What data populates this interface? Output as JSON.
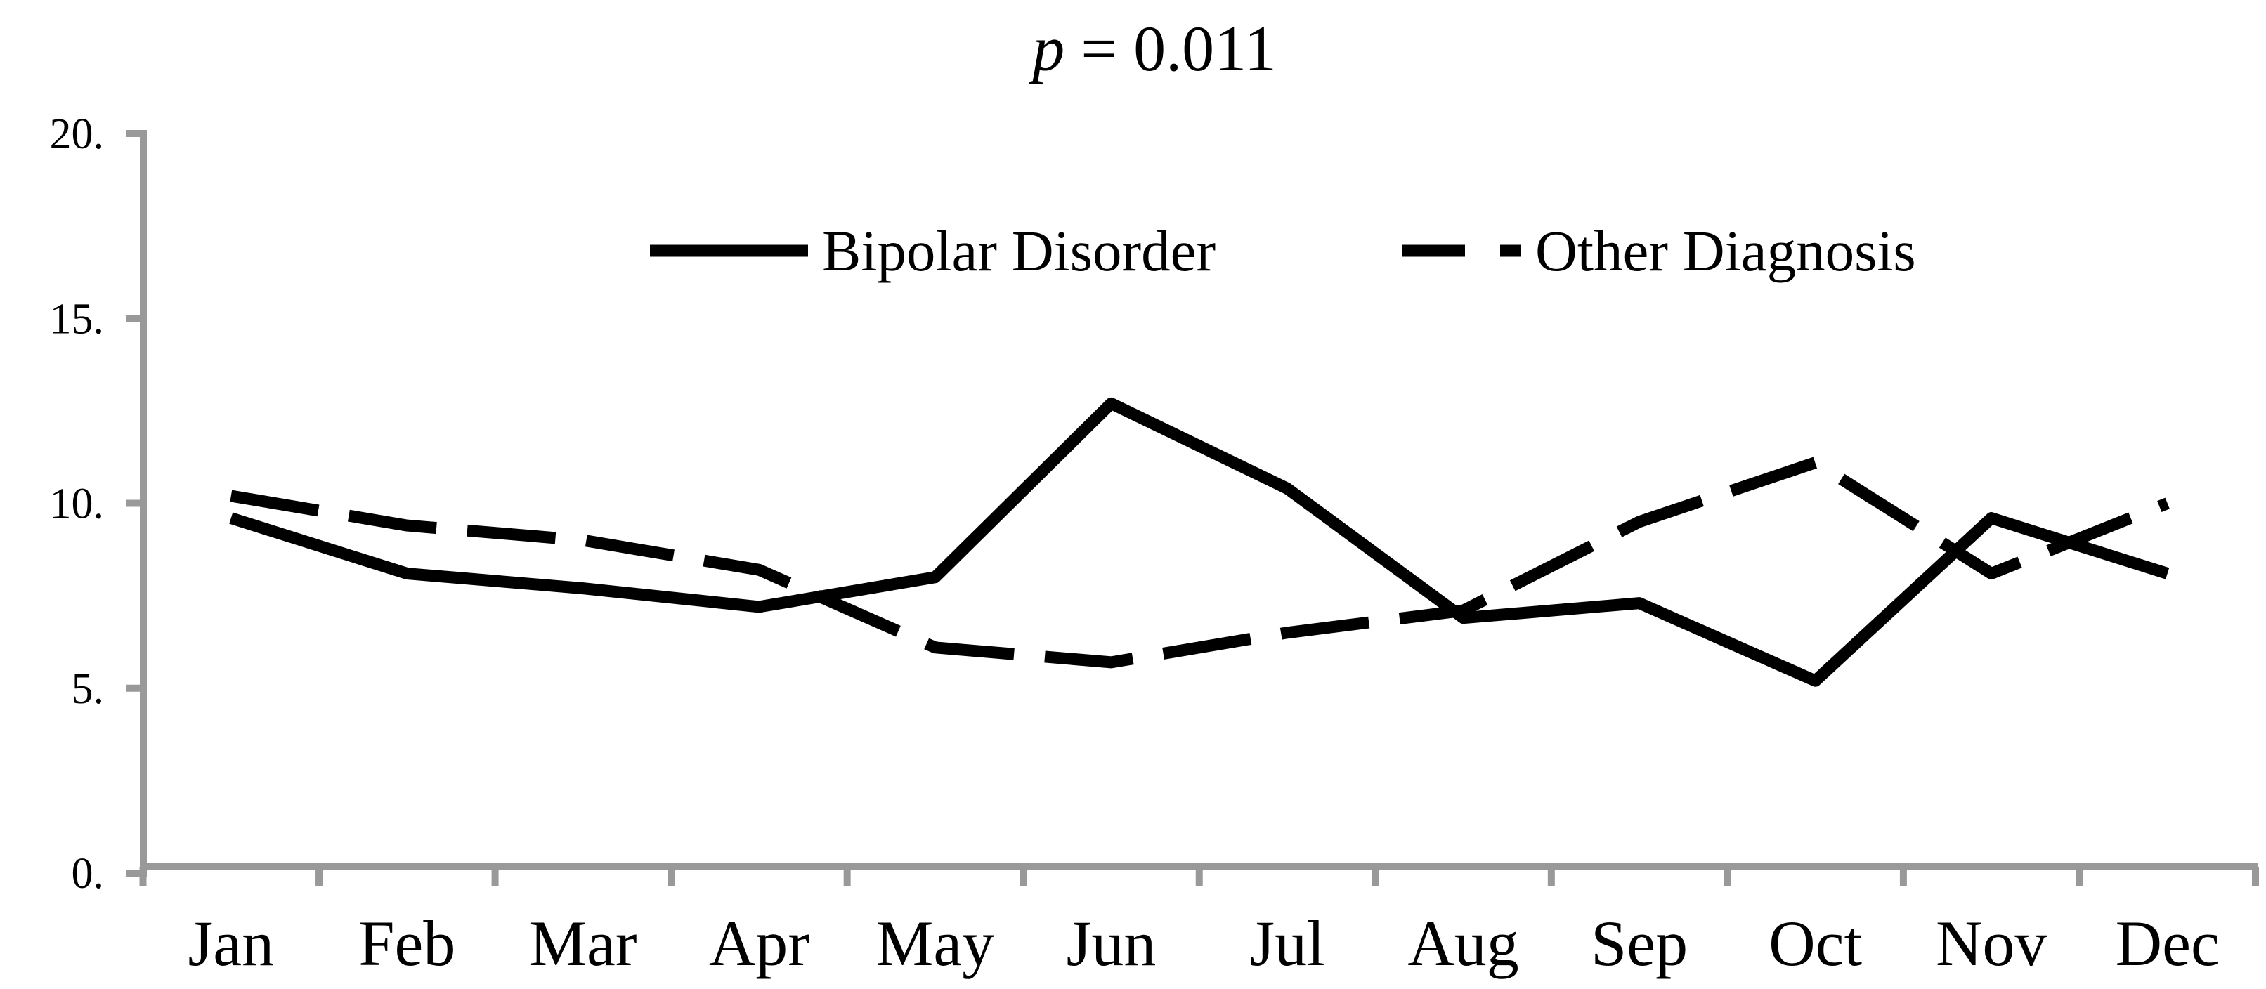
{
  "chart_data": {
    "type": "line",
    "title": "p = 0.011",
    "title_parts": {
      "p": "p",
      "rest": " = 0.011"
    },
    "categories": [
      "Jan",
      "Feb",
      "Mar",
      "Apr",
      "May",
      "Jun",
      "Jul",
      "Aug",
      "Sep",
      "Oct",
      "Nov",
      "Dec"
    ],
    "series": [
      {
        "name": "Bipolar Disorder",
        "line_style": "solid",
        "values": [
          9.6,
          8.1,
          7.7,
          7.2,
          8.0,
          12.7,
          10.4,
          6.9,
          7.3,
          5.2,
          9.6,
          8.1
        ]
      },
      {
        "name": "Other Diagnosis",
        "line_style": "dashed",
        "values": [
          10.2,
          9.4,
          9.0,
          8.2,
          6.1,
          5.7,
          6.5,
          7.1,
          9.5,
          11.1,
          8.1,
          10.0
        ]
      }
    ],
    "ylim": [
      0,
      20
    ],
    "ytick_values": [
      20,
      15,
      10,
      5,
      0
    ],
    "ytick_labels": [
      "20.",
      "15.",
      "10.",
      "5.",
      "0."
    ],
    "xlabel": "",
    "ylabel": "",
    "grid": false,
    "legend_position": "top-center"
  },
  "colors": {
    "series_line": "#000000",
    "axis": "#999999",
    "background": "#ffffff",
    "text": "#000000"
  }
}
